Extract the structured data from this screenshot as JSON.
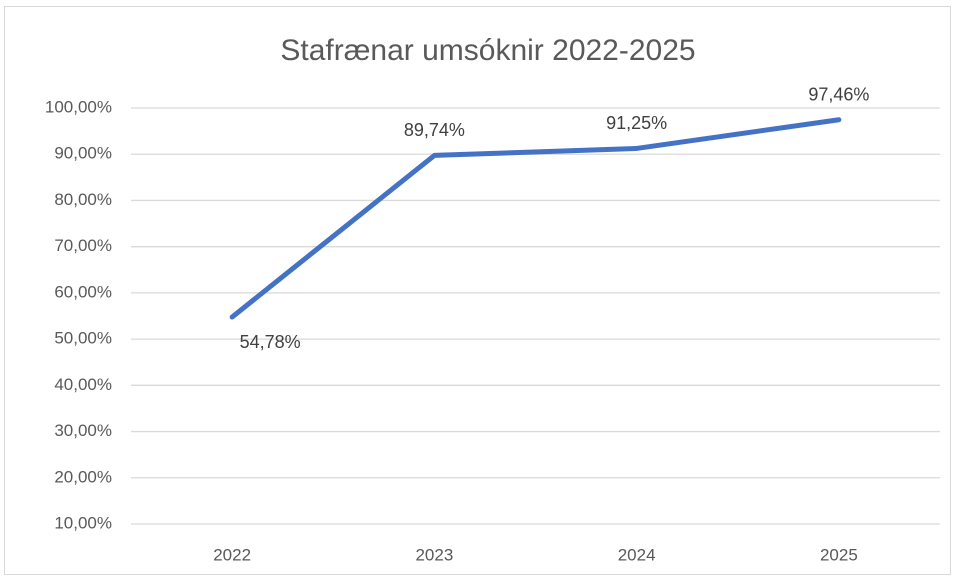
{
  "chart_data": {
    "type": "line",
    "title": "Stafrænar umsóknir 2022-2025",
    "categories": [
      "2022",
      "2023",
      "2024",
      "2025"
    ],
    "series": [
      {
        "name": null,
        "color": "#4472c4",
        "values": [
          54.78,
          89.74,
          91.25,
          97.46
        ],
        "value_labels": [
          "54,78%",
          "89,74%",
          "91,25%",
          "97,46%"
        ]
      }
    ],
    "ylim": [
      10,
      100
    ],
    "yticks": [
      {
        "value": 10,
        "label": "10,00%"
      },
      {
        "value": 20,
        "label": "20,00%"
      },
      {
        "value": 30,
        "label": "30,00%"
      },
      {
        "value": 40,
        "label": "40,00%"
      },
      {
        "value": 50,
        "label": "50,00%"
      },
      {
        "value": 60,
        "label": "60,00%"
      },
      {
        "value": 70,
        "label": "70,00%"
      },
      {
        "value": 80,
        "label": "80,00%"
      },
      {
        "value": 90,
        "label": "90,00%"
      },
      {
        "value": 100,
        "label": "100,00%"
      }
    ],
    "grid": true
  }
}
